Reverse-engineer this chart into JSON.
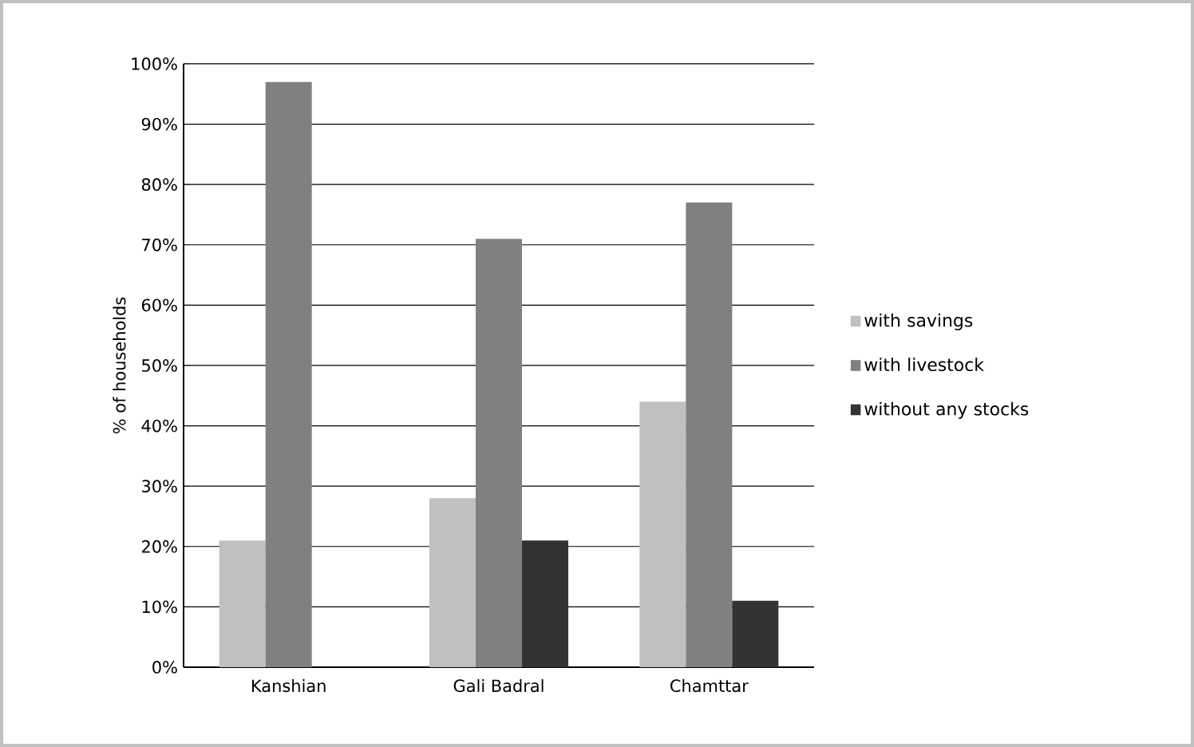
{
  "chart_data": {
    "type": "bar",
    "ylabel": "% of households",
    "categories": [
      "Kanshian",
      "Gali Badral",
      "Chamttar"
    ],
    "series": [
      {
        "name": "with savings",
        "color": "#c0c0c0",
        "values": [
          21,
          28,
          44
        ]
      },
      {
        "name": "with livestock",
        "color": "#808080",
        "values": [
          97,
          71,
          77
        ]
      },
      {
        "name": "without any stocks",
        "color": "#333333",
        "values": [
          0,
          21,
          11
        ]
      }
    ],
    "ylim": [
      0,
      100
    ],
    "yticks": [
      {
        "value": 0,
        "label": "0%"
      },
      {
        "value": 10,
        "label": "10%"
      },
      {
        "value": 20,
        "label": "20%"
      },
      {
        "value": 30,
        "label": "30%"
      },
      {
        "value": 40,
        "label": "40%"
      },
      {
        "value": 50,
        "label": "50%"
      },
      {
        "value": 60,
        "label": "60%"
      },
      {
        "value": 70,
        "label": "70%"
      },
      {
        "value": 80,
        "label": "80%"
      },
      {
        "value": 90,
        "label": "90%"
      },
      {
        "value": 100,
        "label": "100%"
      }
    ],
    "grid": "y",
    "legend": "right"
  }
}
